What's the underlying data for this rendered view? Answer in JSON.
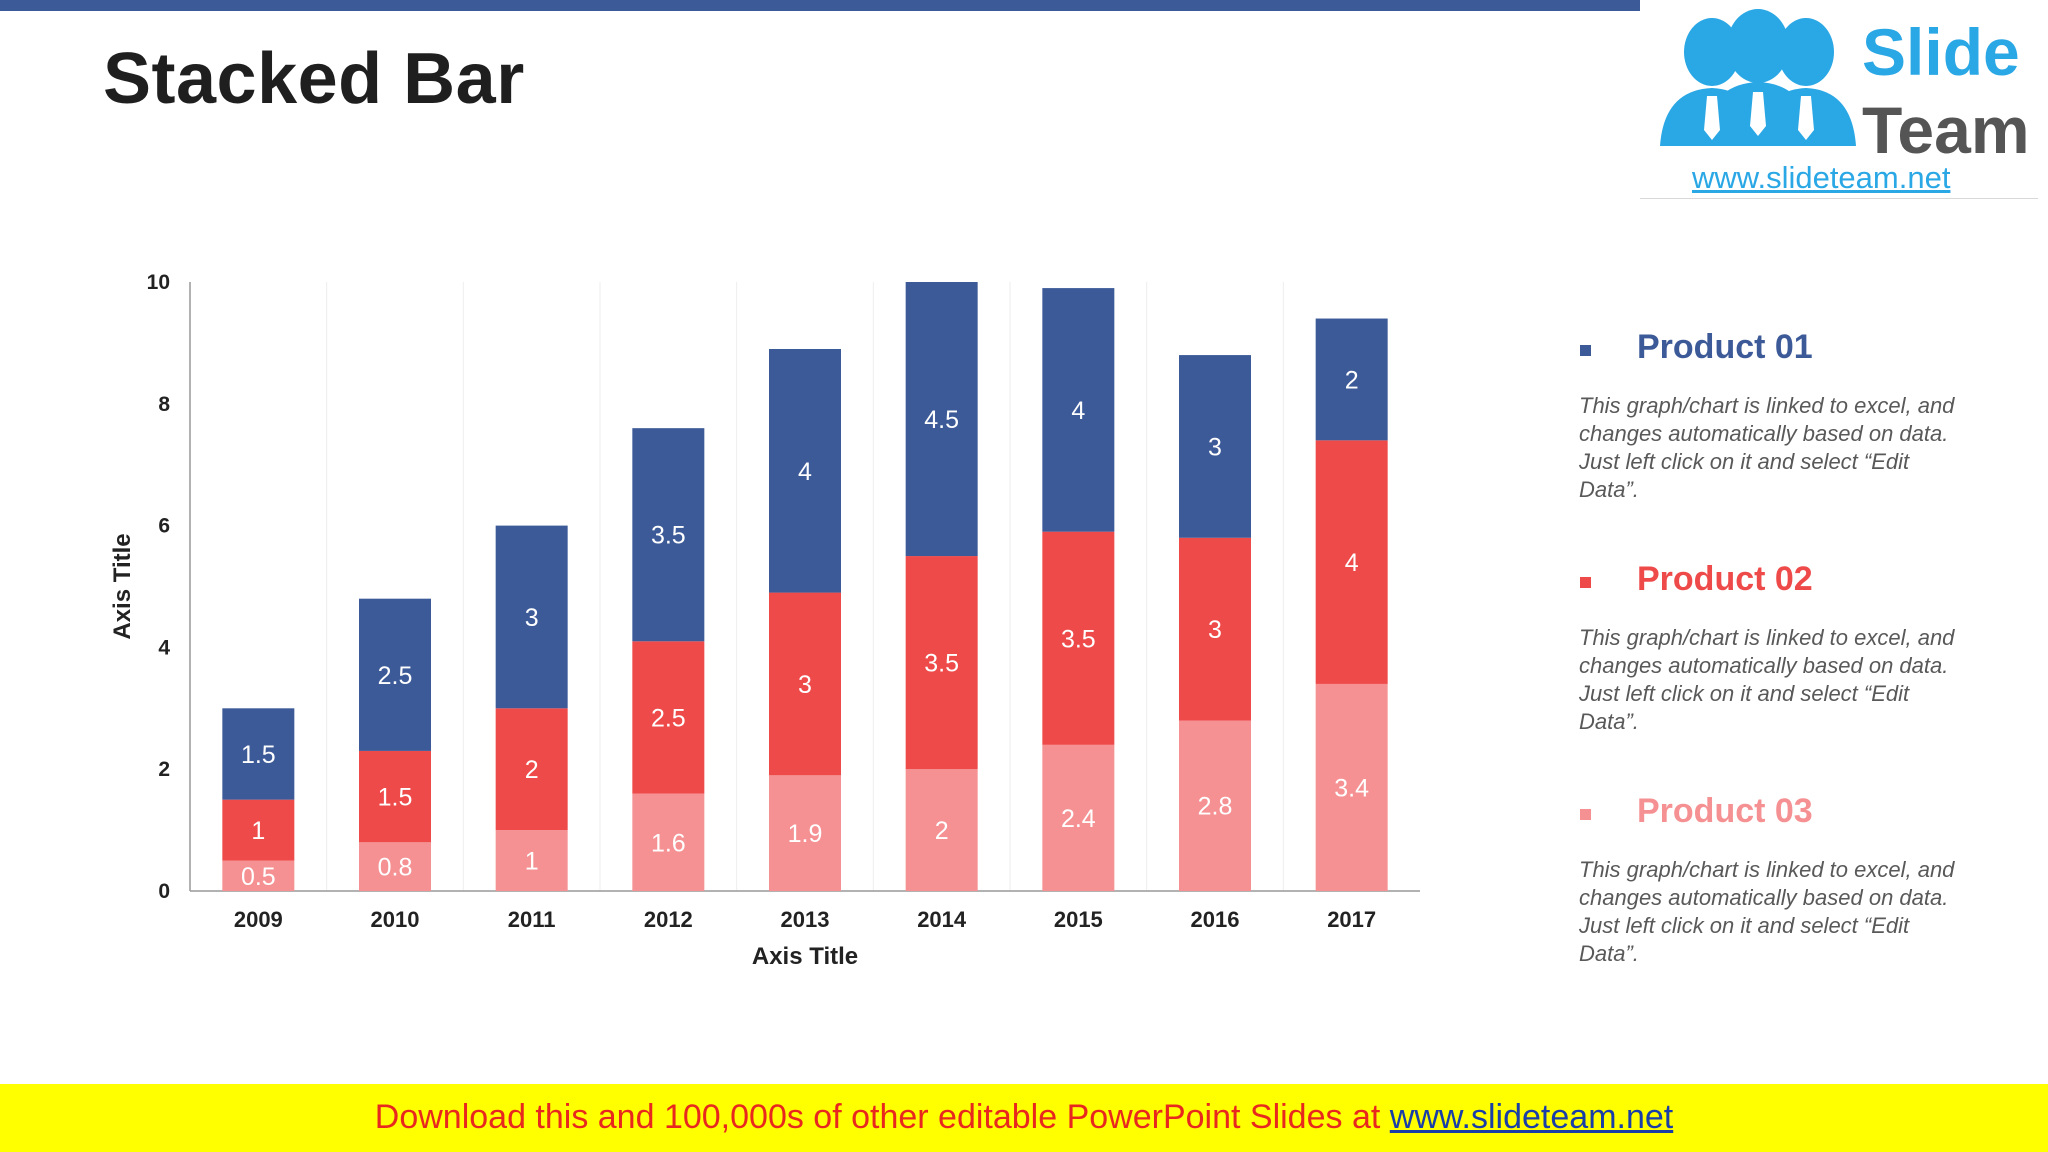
{
  "slide": {
    "title": "Stacked Bar"
  },
  "logo": {
    "line1": "Slide",
    "line2": "Team",
    "url": "www.slideteam.net"
  },
  "colors": {
    "product01": "#3d5a98",
    "product02": "#ef4a4a",
    "product03": "#f59193",
    "top_bar": "#3d5a98",
    "footer_bg": "#ffff00",
    "footer_text": "#e8281e",
    "footer_link": "#1a3ea8"
  },
  "chart_data": {
    "type": "bar",
    "stacked": true,
    "title": "",
    "xlabel": "Axis Title",
    "ylabel": "Axis Title",
    "ylim": [
      0,
      10
    ],
    "yticks": [
      0,
      2,
      4,
      6,
      8,
      10
    ],
    "categories": [
      "2009",
      "2010",
      "2011",
      "2012",
      "2013",
      "2014",
      "2015",
      "2016",
      "2017"
    ],
    "series": [
      {
        "name": "Product 03",
        "color": "#f59193",
        "values": [
          0.5,
          0.8,
          1,
          1.6,
          1.9,
          2,
          2.4,
          2.8,
          3.4
        ]
      },
      {
        "name": "Product 02",
        "color": "#ef4a4a",
        "values": [
          1,
          1.5,
          2,
          2.5,
          3,
          3.5,
          3.5,
          3,
          4
        ]
      },
      {
        "name": "Product 01",
        "color": "#3d5a98",
        "values": [
          1.5,
          2.5,
          3,
          3.5,
          4,
          4.5,
          4,
          3,
          2
        ]
      }
    ],
    "data_labels": true,
    "grid": "vertical-category-separators"
  },
  "legend": [
    {
      "name": "Product 01",
      "color": "#3d5a98",
      "desc": "This graph/chart is linked to excel, and changes automatically based on data. Just left click on it and select “Edit Data”."
    },
    {
      "name": "Product 02",
      "color": "#ef4a4a",
      "desc": "This graph/chart is linked to excel, and changes automatically based on data. Just left click on it and select “Edit Data”."
    },
    {
      "name": "Product 03",
      "color": "#f59193",
      "desc": "This graph/chart is linked to excel, and changes automatically based on data. Just left click on it and select “Edit Data”."
    }
  ],
  "footer": {
    "text": "Download this and 100,000s of other editable PowerPoint Slides at ",
    "link": "www.slideteam.net"
  }
}
